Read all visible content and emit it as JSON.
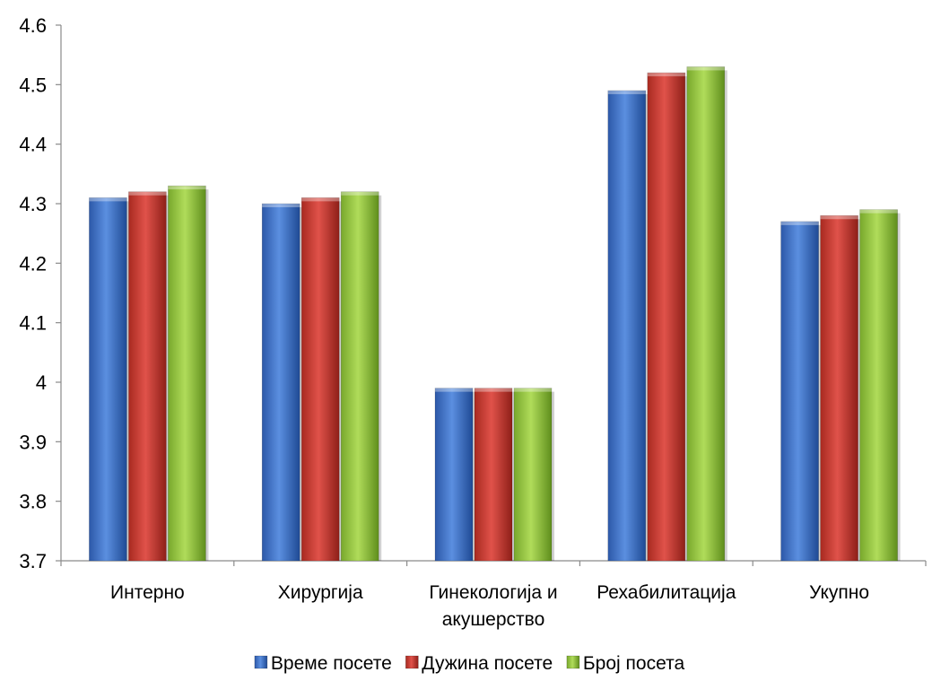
{
  "chart_data": {
    "type": "bar",
    "title": "",
    "xlabel": "",
    "ylabel": "",
    "ylim": [
      3.7,
      4.6
    ],
    "yticks": [
      "4.6",
      "4.5",
      "4.4",
      "4.3",
      "4.2",
      "4.1",
      "4",
      "3.9",
      "3.8",
      "3.7"
    ],
    "categories": [
      [
        "Интерно"
      ],
      [
        "Хирургија"
      ],
      [
        "Гинекологија и",
        "акушерство"
      ],
      [
        "Рехабилитација"
      ],
      [
        "Укупно"
      ]
    ],
    "series": [
      {
        "name": "Време посете",
        "color": "#3a6fc4",
        "values": [
          4.31,
          4.3,
          3.99,
          4.49,
          4.27
        ]
      },
      {
        "name": "Дужина посете",
        "color": "#c0392b",
        "values": [
          4.32,
          4.31,
          3.99,
          4.52,
          4.28
        ]
      },
      {
        "name": "Број посета",
        "color": "#8cbf3f",
        "values": [
          4.33,
          4.32,
          3.99,
          4.53,
          4.29
        ]
      }
    ],
    "grid": false,
    "legend_position": "bottom"
  }
}
